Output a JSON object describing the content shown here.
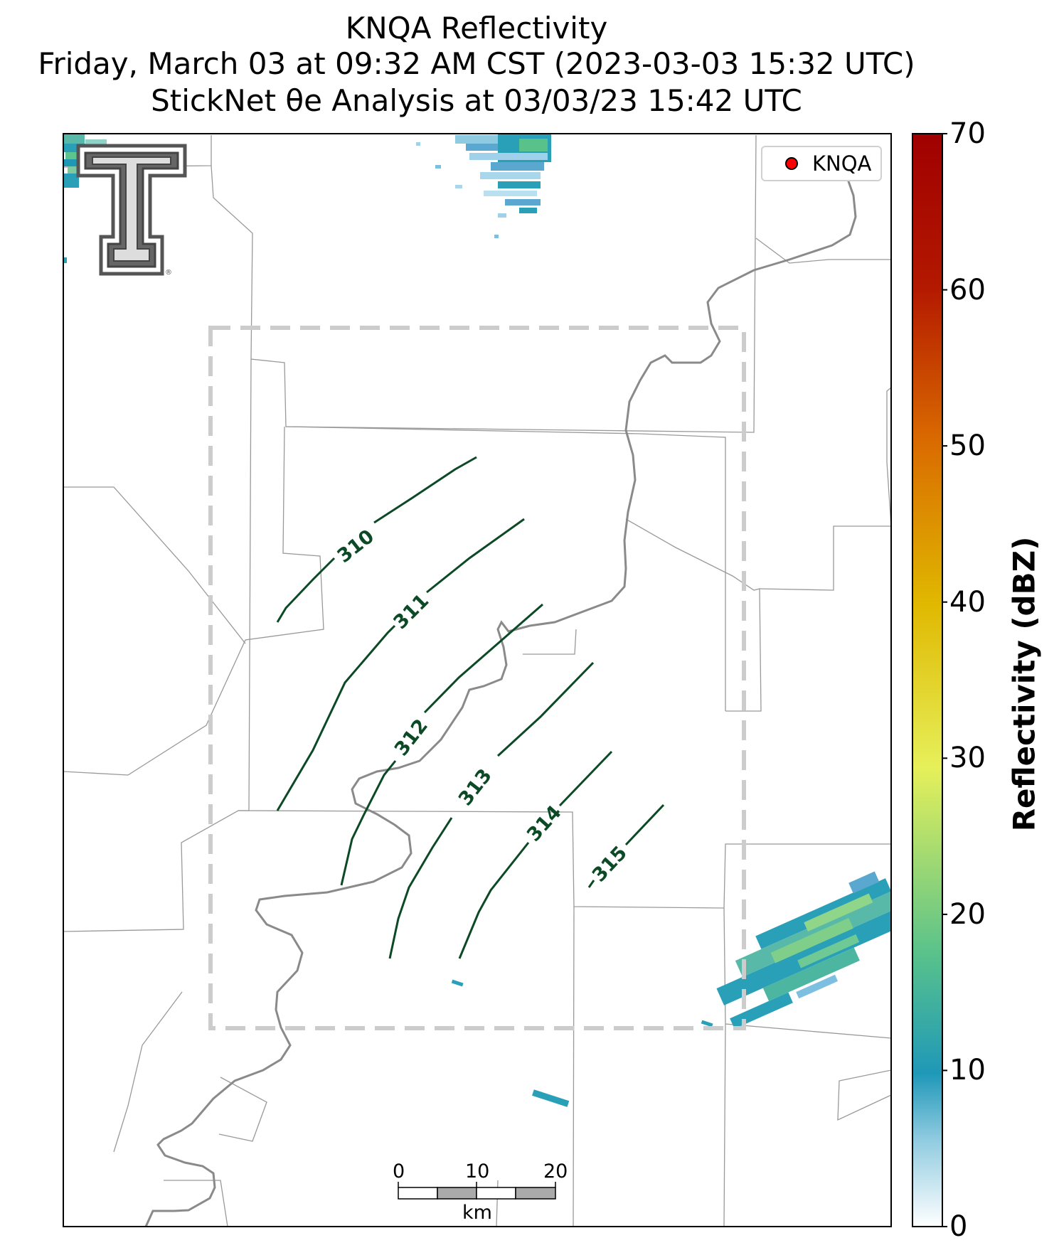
{
  "title": {
    "line1": "KNQA Reflectivity",
    "line2": "Friday, March 03 at 09:32 AM CST (2023-03-03 15:32 UTC)",
    "line3": "StickNet θe Analysis at 03/03/23 15:42 UTC"
  },
  "legend": {
    "label": "KNQA",
    "marker_color": "#ff0000"
  },
  "colorbar": {
    "label": "Reflectivity (dBZ)",
    "ticks": [
      "0",
      "10",
      "20",
      "30",
      "40",
      "50",
      "60",
      "70"
    ],
    "range": [
      0,
      70
    ],
    "colors": [
      "#ffffff",
      "#1f98b8",
      "#59c28b",
      "#e6f05a",
      "#e0b800",
      "#d96a00",
      "#b31800",
      "#a00000"
    ]
  },
  "contours": {
    "color": "#0b4a25",
    "levels": [
      "310",
      "311",
      "312",
      "313",
      "314",
      "315"
    ]
  },
  "scale_bar": {
    "ticks": [
      "0",
      "10",
      "20"
    ],
    "unit": "km"
  },
  "logo": {
    "name": "Texas Tech double-T logo",
    "color": "#555555"
  }
}
